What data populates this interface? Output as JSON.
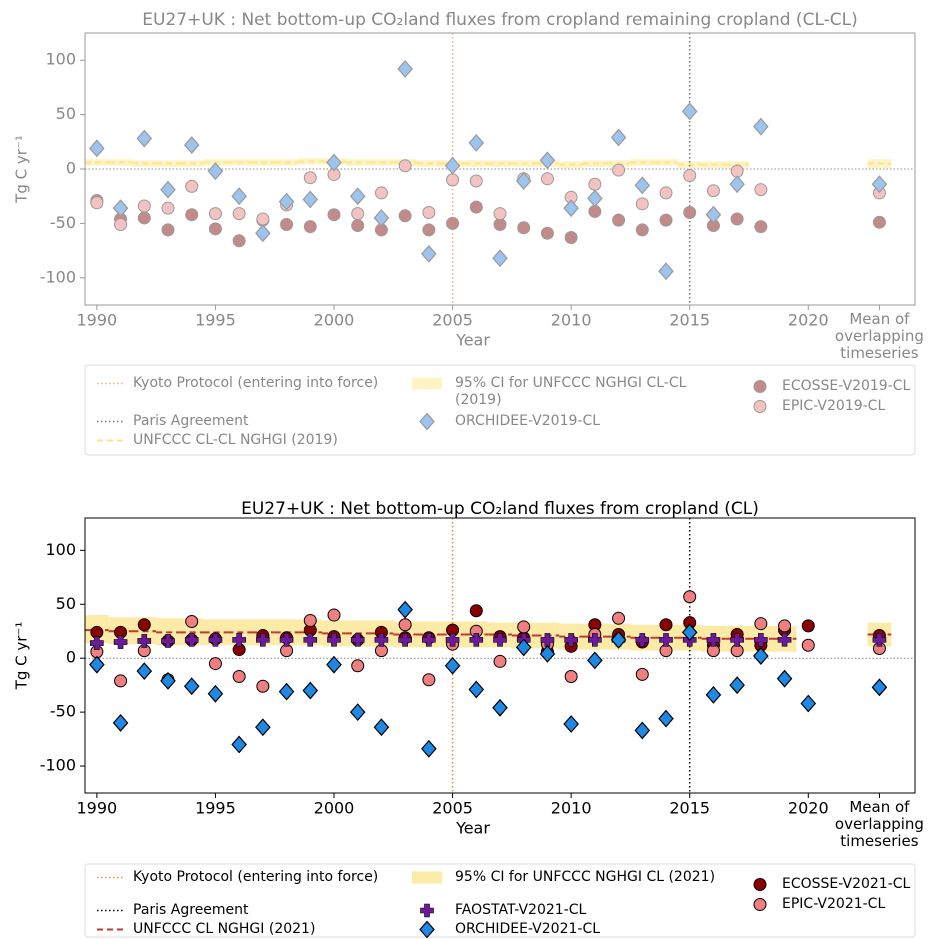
{
  "chart_data": [
    {
      "type": "scatter",
      "title": "EU27+UK : Net bottom-up CO₂land fluxes from cropland remaining cropland (CL-CL)",
      "xlabel": "Year",
      "ylabel": "Tg C yr⁻¹",
      "text_color": "#888888",
      "edgecolor": "#9a9a9a",
      "xlim": [
        1989.5,
        2024.5
      ],
      "ylim": [
        -125,
        125
      ],
      "xticks": [
        1990,
        1995,
        2000,
        2005,
        2010,
        2015,
        2020,
        {
          "value": 2023,
          "label": "Mean of overlapping timeseries"
        }
      ],
      "yticks": [
        -100,
        -50,
        0,
        50,
        100
      ],
      "zero_line": true,
      "vlines": [
        {
          "name": "Kyoto Protocol (entering into force)",
          "x": 2005,
          "color": "#f0b27a"
        },
        {
          "name": "Paris Agreement",
          "x": 2015,
          "color": "#777777"
        }
      ],
      "nghgi": {
        "name": "UNFCCC CL-CL NGHGI (2019)",
        "color": "#fde68a",
        "ci_name": "95% CI for UNFCCC NGHGI CL-CL (2019)",
        "ci_color": "#fdf3c4",
        "x": [
          1990,
          1991,
          1992,
          1993,
          1994,
          1995,
          1996,
          1997,
          1998,
          1999,
          2000,
          2001,
          2002,
          2003,
          2004,
          2005,
          2006,
          2007,
          2008,
          2009,
          2010,
          2011,
          2012,
          2013,
          2014,
          2015,
          2016,
          2017,
          2023
        ],
        "values": [
          6,
          6,
          5,
          5,
          5,
          6,
          6,
          6,
          6,
          7,
          7,
          6,
          6,
          6,
          5,
          5,
          5,
          5,
          5,
          5,
          4,
          5,
          5,
          6,
          6,
          4,
          4,
          4,
          5
        ],
        "ci_lower": [
          3,
          3,
          2,
          2,
          2,
          3,
          3,
          3,
          3,
          4,
          4,
          3,
          3,
          3,
          2,
          2,
          2,
          2,
          2,
          2,
          1,
          2,
          2,
          3,
          3,
          1,
          1,
          1,
          1
        ],
        "ci_upper": [
          9,
          9,
          8,
          8,
          8,
          9,
          9,
          9,
          9,
          10,
          10,
          9,
          9,
          9,
          8,
          8,
          8,
          8,
          8,
          8,
          7,
          8,
          8,
          9,
          9,
          7,
          7,
          7,
          9
        ]
      },
      "series": [
        {
          "name": "ECOSSE-V2019-CL",
          "color": "#c48a8a",
          "marker": "circle",
          "x": [
            1990,
            1991,
            1992,
            1993,
            1994,
            1995,
            1996,
            1997,
            1998,
            1999,
            2000,
            2001,
            2002,
            2003,
            2004,
            2005,
            2006,
            2007,
            2008,
            2009,
            2010,
            2011,
            2012,
            2013,
            2014,
            2015,
            2016,
            2017,
            2018,
            2023
          ],
          "values": [
            -29,
            -46,
            -45,
            -56,
            -42,
            -55,
            -66,
            -47,
            -51,
            -53,
            -42,
            -52,
            -56,
            -43,
            -56,
            -50,
            -35,
            -51,
            -54,
            -59,
            -63,
            -39,
            -47,
            -56,
            -47,
            -40,
            -52,
            -46,
            -53,
            -49
          ]
        },
        {
          "name": "EPIC-V2019-CL",
          "color": "#f5c2c2",
          "marker": "circle",
          "x": [
            1990,
            1991,
            1992,
            1993,
            1994,
            1995,
            1996,
            1997,
            1998,
            1999,
            2000,
            2001,
            2002,
            2003,
            2004,
            2005,
            2006,
            2007,
            2008,
            2009,
            2010,
            2011,
            2012,
            2013,
            2014,
            2015,
            2016,
            2017,
            2018,
            2023
          ],
          "values": [
            -31,
            -51,
            -34,
            -36,
            -16,
            -41,
            -41,
            -46,
            -33,
            -8,
            -5,
            -41,
            -22,
            3,
            -40,
            -10,
            -11,
            -41,
            -9,
            -9,
            -26,
            -14,
            -1,
            -32,
            -22,
            -6,
            -20,
            -2,
            -19,
            -22
          ]
        },
        {
          "name": "ORCHIDEE-V2019-CL",
          "color": "#9cc4ef",
          "marker": "diamond",
          "x": [
            1990,
            1991,
            1992,
            1993,
            1994,
            1995,
            1996,
            1997,
            1998,
            1999,
            2000,
            2001,
            2002,
            2003,
            2004,
            2005,
            2006,
            2007,
            2008,
            2009,
            2010,
            2011,
            2012,
            2013,
            2014,
            2015,
            2016,
            2017,
            2018,
            2023
          ],
          "values": [
            19,
            -36,
            28,
            -19,
            22,
            -2,
            -25,
            -59,
            -30,
            -28,
            6,
            -25,
            -45,
            92,
            -78,
            3,
            24,
            -82,
            -11,
            8,
            -36,
            -27,
            29,
            -15,
            -94,
            53,
            -42,
            -14,
            39,
            -14
          ]
        }
      ]
    },
    {
      "type": "scatter",
      "title": "EU27+UK : Net bottom-up CO₂land fluxes from cropland (CL)",
      "xlabel": "Year",
      "ylabel": "Tg C yr⁻¹",
      "text_color": "#000000",
      "edgecolor": "#000000",
      "xlim": [
        1989.5,
        2024.5
      ],
      "ylim": [
        -125,
        130
      ],
      "xticks": [
        1990,
        1995,
        2000,
        2005,
        2010,
        2015,
        2020,
        {
          "value": 2023,
          "label": "Mean of overlapping timeseries"
        }
      ],
      "yticks": [
        -100,
        -50,
        0,
        50,
        100
      ],
      "zero_line": true,
      "vlines": [
        {
          "name": "Kyoto Protocol (entering into force)",
          "x": 2005,
          "color": "#e8943a"
        },
        {
          "name": "Paris Agreement",
          "x": 2015,
          "color": "#000000"
        }
      ],
      "nghgi": {
        "name": "UNFCCC CL NGHGI (2021)",
        "color": "#c0392b",
        "ci_name": "95% CI for UNFCCC NGHGI CL (2021)",
        "ci_color": "#fbeba6",
        "x": [
          1990,
          1991,
          1992,
          1993,
          1994,
          1995,
          1996,
          1997,
          1998,
          1999,
          2000,
          2001,
          2002,
          2003,
          2004,
          2005,
          2006,
          2007,
          2008,
          2009,
          2010,
          2011,
          2012,
          2013,
          2014,
          2015,
          2016,
          2017,
          2018,
          2019,
          2023
        ],
        "values": [
          26,
          25,
          25,
          24,
          24,
          24,
          24,
          24,
          24,
          24,
          23,
          23,
          23,
          22,
          22,
          22,
          22,
          22,
          21,
          21,
          20,
          20,
          20,
          19,
          19,
          19,
          18,
          18,
          18,
          18,
          22
        ],
        "ci_lower": [
          14,
          13,
          13,
          12,
          12,
          12,
          12,
          12,
          12,
          12,
          11,
          11,
          11,
          10,
          10,
          10,
          10,
          10,
          9,
          9,
          8,
          8,
          8,
          7,
          7,
          7,
          6,
          6,
          6,
          6,
          11
        ],
        "ci_upper": [
          40,
          38,
          38,
          37,
          37,
          36,
          36,
          36,
          36,
          36,
          35,
          35,
          35,
          34,
          34,
          34,
          34,
          33,
          33,
          33,
          32,
          32,
          32,
          31,
          31,
          31,
          30,
          30,
          30,
          30,
          33
        ]
      },
      "series": [
        {
          "name": "ECOSSE-V2021-CL",
          "color": "#8b0000",
          "marker": "circle",
          "x": [
            1990,
            1991,
            1992,
            1993,
            1994,
            1995,
            1996,
            1997,
            1998,
            1999,
            2000,
            2001,
            2002,
            2003,
            2004,
            2005,
            2006,
            2007,
            2008,
            2009,
            2010,
            2011,
            2012,
            2013,
            2014,
            2015,
            2016,
            2017,
            2018,
            2019,
            2020,
            2023
          ],
          "values": [
            24,
            24,
            31,
            16,
            17,
            18,
            8,
            21,
            19,
            26,
            20,
            17,
            24,
            19,
            19,
            26,
            44,
            20,
            19,
            6,
            11,
            31,
            22,
            15,
            31,
            33,
            12,
            22,
            12,
            26,
            30,
            21
          ]
        },
        {
          "name": "EPIC-V2021-CL",
          "color": "#f08080",
          "marker": "circle",
          "x": [
            1990,
            1991,
            1992,
            1993,
            1994,
            1995,
            1996,
            1997,
            1998,
            1999,
            2000,
            2001,
            2002,
            2003,
            2004,
            2005,
            2006,
            2007,
            2008,
            2009,
            2010,
            2011,
            2012,
            2013,
            2014,
            2015,
            2016,
            2017,
            2018,
            2019,
            2020,
            2023
          ],
          "values": [
            6,
            -21,
            7,
            -20,
            34,
            -5,
            -17,
            -26,
            7,
            35,
            40,
            -7,
            7,
            31,
            -20,
            13,
            25,
            -3,
            29,
            13,
            -17,
            22,
            37,
            -15,
            7,
            57,
            7,
            7,
            32,
            30,
            12,
            9
          ]
        },
        {
          "name": "FAOSTAT-V2021-CL",
          "color": "#6a1b9a",
          "marker": "plus",
          "x": [
            1990,
            1991,
            1992,
            1993,
            1994,
            1995,
            1996,
            1997,
            1998,
            1999,
            2000,
            2001,
            2002,
            2003,
            2004,
            2005,
            2006,
            2007,
            2008,
            2009,
            2010,
            2011,
            2012,
            2013,
            2014,
            2015,
            2016,
            2017,
            2018,
            2019,
            2023
          ],
          "values": [
            14,
            15,
            16,
            16,
            17,
            17,
            17,
            17,
            17,
            17,
            17,
            17,
            17,
            17,
            17,
            17,
            17,
            17,
            17,
            17,
            17,
            17,
            17,
            17,
            17,
            17,
            17,
            17,
            17,
            17,
            17
          ]
        },
        {
          "name": "ORCHIDEE-V2021-CL",
          "color": "#1e88e5",
          "marker": "diamond",
          "x": [
            1990,
            1991,
            1992,
            1993,
            1994,
            1995,
            1996,
            1997,
            1998,
            1999,
            2000,
            2001,
            2002,
            2003,
            2004,
            2005,
            2006,
            2007,
            2008,
            2009,
            2010,
            2011,
            2012,
            2013,
            2014,
            2015,
            2016,
            2017,
            2018,
            2019,
            2020,
            2023
          ],
          "values": [
            -6,
            -60,
            -12,
            -21,
            -26,
            -33,
            -80,
            -64,
            -31,
            -30,
            -6,
            -50,
            -64,
            45,
            -84,
            -7,
            -29,
            -46,
            10,
            4,
            -61,
            -2,
            17,
            -67,
            -56,
            24,
            -34,
            -25,
            2,
            -19,
            -42,
            -27
          ]
        }
      ]
    }
  ]
}
